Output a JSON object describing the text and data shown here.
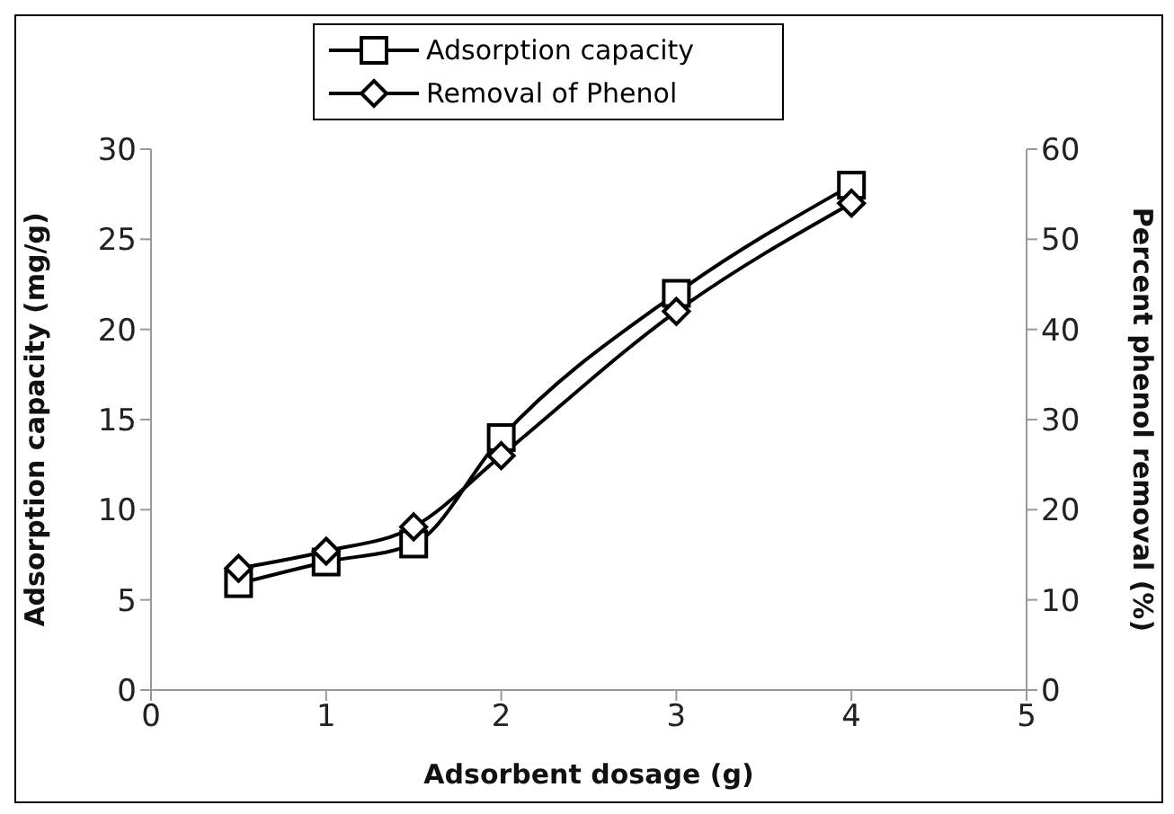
{
  "chart_data": {
    "type": "line",
    "xlabel": "Adsorbent dosage (g)",
    "ylabel": "Adsorption capacity (mg/g)",
    "y2label": "Percent phenol removal (%)",
    "x": [
      0.5,
      1,
      1.5,
      2,
      3,
      4
    ],
    "series": [
      {
        "name": "Adsorption capacity",
        "color": "#000000",
        "values": [
          5.9,
          7.1,
          8.1,
          14,
          22,
          28
        ],
        "marker": "square"
      },
      {
        "name": "Removal of Phenol",
        "color": "#000000",
        "values": [
          13.5,
          15.4,
          18.1,
          26,
          42,
          54
        ],
        "marker": "diamond",
        "axis": "y2"
      }
    ],
    "xlim": [
      0,
      5
    ],
    "xticks": [
      0,
      1,
      2,
      3,
      4,
      5
    ],
    "ylim": [
      0,
      30
    ],
    "yticks": [
      0,
      5,
      10,
      15,
      20,
      25,
      30
    ],
    "y2lim": [
      0,
      60
    ],
    "y2ticks": [
      0,
      10,
      20,
      30,
      40,
      50,
      60
    ],
    "grid": false,
    "legend": "top",
    "line_style": "solid"
  }
}
